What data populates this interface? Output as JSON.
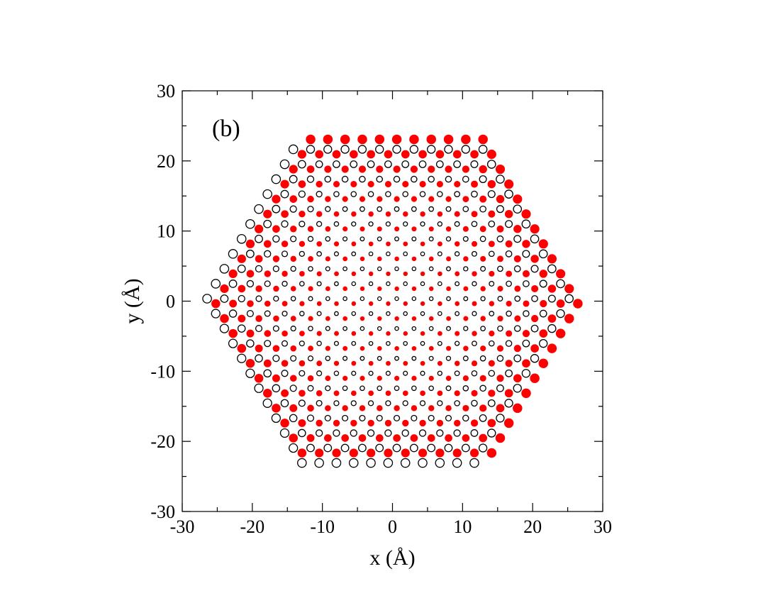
{
  "chart_data": {
    "type": "scatter",
    "panel_label": "(b)",
    "xlabel": "x (Å)",
    "ylabel": "y (Å)",
    "xlim": [
      -30,
      30
    ],
    "ylim": [
      -30,
      30
    ],
    "xticks": [
      -30,
      -20,
      -10,
      0,
      10,
      20,
      30
    ],
    "yticks": [
      -30,
      -20,
      -10,
      0,
      10,
      20,
      30
    ],
    "xtick_labels": [
      "-30",
      "-20",
      "-10",
      "0",
      "10",
      "20",
      "30"
    ],
    "ytick_labels": [
      "-30",
      "-20",
      "-10",
      "0",
      "10",
      "20",
      "30"
    ],
    "grid": false,
    "legend": "none",
    "lattice": {
      "shape": "hexagon",
      "a1": [
        2.46,
        0
      ],
      "a2": [
        1.23,
        2.13
      ],
      "basis_filled_red": [
        -0.61,
        -0.355
      ],
      "basis_open_black": [
        0.61,
        0.355
      ],
      "radius_max": 23.2,
      "marker_size_scale": "larger toward hexagon edges",
      "series": [
        {
          "marker": "filled circle",
          "color": "#ff0000"
        },
        {
          "marker": "open circle",
          "color": "#000000"
        }
      ]
    }
  }
}
